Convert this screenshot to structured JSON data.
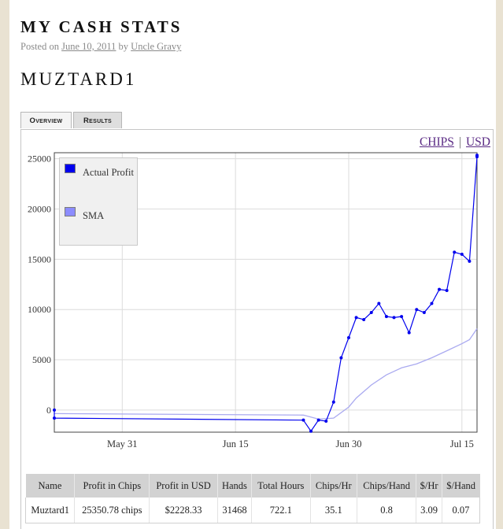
{
  "post": {
    "title": "MY CASH STATS",
    "posted_on_label": "Posted on",
    "date": "June 10, 2011",
    "by_label": "by",
    "author": "Uncle Gravy"
  },
  "player": {
    "name": "MUZTARD1"
  },
  "tabs": [
    {
      "label": "Overview",
      "active": true
    },
    {
      "label": "Results",
      "active": false
    }
  ],
  "units": {
    "chips_label": "CHIPS",
    "separator": "|",
    "usd_label": "USD"
  },
  "legend": {
    "items": [
      {
        "label": "Actual Profit",
        "color": "#0000ee"
      },
      {
        "label": "SMA",
        "color": "#8c8cff"
      }
    ]
  },
  "chart_data": {
    "type": "line",
    "xaxis": {
      "type": "date",
      "range": [
        "2011-05-22",
        "2011-07-17"
      ],
      "ticks": [
        "May 31",
        "Jun 15",
        "Jun 30",
        "Jul 15"
      ]
    },
    "ylim": [
      -2200,
      25600
    ],
    "yticks": [
      0,
      5000,
      10000,
      15000,
      20000,
      25000
    ],
    "grid": true,
    "legend_position": "top-left",
    "series": [
      {
        "name": "Actual Profit",
        "color": "#0000ee",
        "points": [
          [
            "2011-05-22",
            0
          ],
          [
            "2011-05-22",
            -800
          ],
          [
            "2011-06-24",
            -1000
          ],
          [
            "2011-06-25",
            -2100
          ],
          [
            "2011-06-26",
            -1000
          ],
          [
            "2011-06-27",
            -1100
          ],
          [
            "2011-06-28",
            800
          ],
          [
            "2011-06-29",
            5200
          ],
          [
            "2011-06-30",
            7200
          ],
          [
            "2011-07-01",
            9200
          ],
          [
            "2011-07-02",
            9000
          ],
          [
            "2011-07-03",
            9700
          ],
          [
            "2011-07-04",
            10600
          ],
          [
            "2011-07-05",
            9300
          ],
          [
            "2011-07-06",
            9200
          ],
          [
            "2011-07-07",
            9300
          ],
          [
            "2011-07-08",
            7700
          ],
          [
            "2011-07-09",
            10000
          ],
          [
            "2011-07-10",
            9700
          ],
          [
            "2011-07-11",
            10600
          ],
          [
            "2011-07-12",
            12000
          ],
          [
            "2011-07-13",
            11900
          ],
          [
            "2011-07-14",
            15700
          ],
          [
            "2011-07-15",
            15500
          ],
          [
            "2011-07-16",
            14800
          ],
          [
            "2011-07-17",
            25200
          ],
          [
            "2011-07-17",
            25350
          ]
        ]
      },
      {
        "name": "SMA",
        "color": "#aaaaf0",
        "points": [
          [
            "2011-05-22",
            -350
          ],
          [
            "2011-06-24",
            -500
          ],
          [
            "2011-06-26",
            -900
          ],
          [
            "2011-06-28",
            -800
          ],
          [
            "2011-06-30",
            300
          ],
          [
            "2011-07-01",
            1200
          ],
          [
            "2011-07-03",
            2500
          ],
          [
            "2011-07-05",
            3500
          ],
          [
            "2011-07-07",
            4200
          ],
          [
            "2011-07-09",
            4600
          ],
          [
            "2011-07-11",
            5200
          ],
          [
            "2011-07-13",
            5900
          ],
          [
            "2011-07-15",
            6600
          ],
          [
            "2011-07-16",
            7000
          ],
          [
            "2011-07-17",
            8100
          ]
        ]
      }
    ]
  },
  "table": {
    "headers": [
      "Name",
      "Profit in Chips",
      "Profit in USD",
      "Hands",
      "Total Hours",
      "Chips/Hr",
      "Chips/Hand",
      "$/Hr",
      "$/Hand"
    ],
    "rows": [
      [
        "Muztard1",
        "25350.78 chips",
        "$2228.33",
        "31468",
        "722.1",
        "35.1",
        "0.8",
        "3.09",
        "0.07"
      ]
    ]
  }
}
